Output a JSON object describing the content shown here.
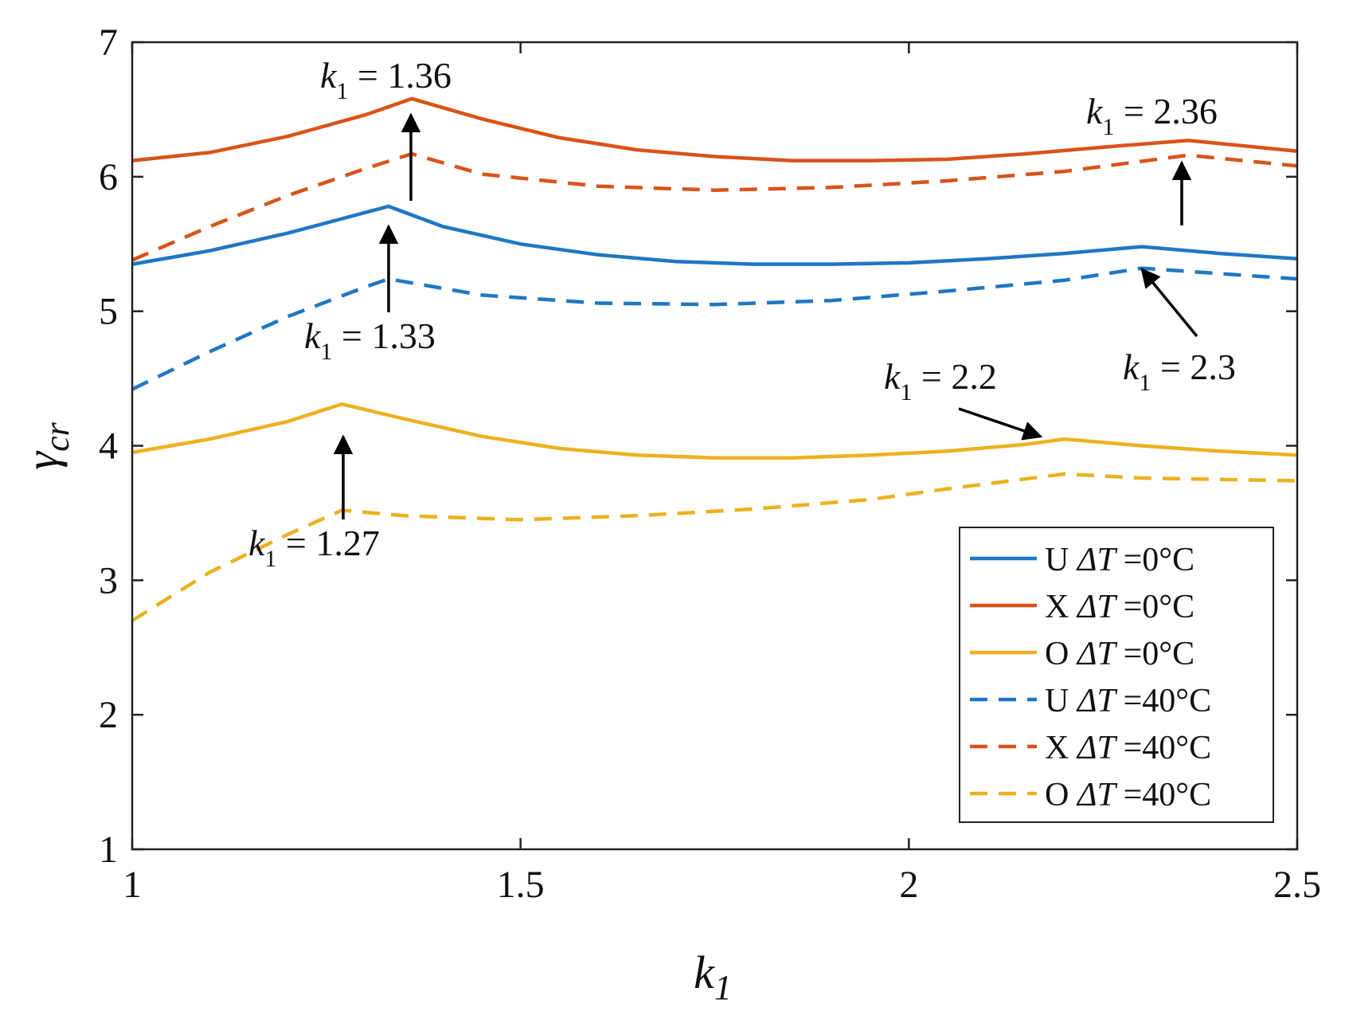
{
  "chart_data": {
    "type": "line",
    "title": "",
    "xlabel": "k_1",
    "ylabel": "γ_cr",
    "xlim": [
      1,
      2.5
    ],
    "ylim": [
      1,
      7
    ],
    "xticks": [
      1,
      1.5,
      2,
      2.5
    ],
    "yticks": [
      1,
      2,
      3,
      4,
      5,
      6,
      7
    ],
    "xtick_labels": [
      "1",
      "1.5",
      "2",
      "2.5"
    ],
    "ytick_labels": [
      "1",
      "2",
      "3",
      "4",
      "5",
      "6",
      "7"
    ],
    "grid": false,
    "legend_position": "bottom-right",
    "series": [
      {
        "name": "U ΔT =0°C",
        "label_prefix": "U",
        "delta_t": "=0°C",
        "color": "#1f77c4",
        "style": "solid",
        "x": [
          1.0,
          1.1,
          1.2,
          1.33,
          1.4,
          1.5,
          1.6,
          1.7,
          1.8,
          1.9,
          2.0,
          2.1,
          2.2,
          2.3,
          2.4,
          2.5
        ],
        "y": [
          5.35,
          5.45,
          5.58,
          5.78,
          5.63,
          5.5,
          5.42,
          5.37,
          5.35,
          5.35,
          5.36,
          5.39,
          5.43,
          5.48,
          5.43,
          5.39
        ]
      },
      {
        "name": "X ΔT =0°C",
        "label_prefix": "X",
        "delta_t": "=0°C",
        "color": "#d95319",
        "style": "solid",
        "x": [
          1.0,
          1.1,
          1.2,
          1.3,
          1.36,
          1.45,
          1.55,
          1.65,
          1.75,
          1.85,
          1.95,
          2.05,
          2.15,
          2.25,
          2.36,
          2.5
        ],
        "y": [
          6.12,
          6.18,
          6.3,
          6.46,
          6.58,
          6.43,
          6.29,
          6.2,
          6.15,
          6.12,
          6.12,
          6.13,
          6.17,
          6.22,
          6.27,
          6.19
        ]
      },
      {
        "name": "O ΔT =0°C",
        "label_prefix": "O",
        "delta_t": "=0°C",
        "color": "#edb120",
        "style": "solid",
        "x": [
          1.0,
          1.1,
          1.2,
          1.27,
          1.35,
          1.45,
          1.55,
          1.65,
          1.75,
          1.85,
          1.95,
          2.05,
          2.15,
          2.2,
          2.3,
          2.4,
          2.5
        ],
        "y": [
          3.95,
          4.05,
          4.18,
          4.31,
          4.2,
          4.07,
          3.98,
          3.93,
          3.91,
          3.91,
          3.93,
          3.96,
          4.01,
          4.05,
          4.0,
          3.96,
          3.93
        ]
      },
      {
        "name": "U ΔT =40°C",
        "label_prefix": "U",
        "delta_t": "=40°C",
        "color": "#1f77c4",
        "style": "dashed",
        "x": [
          1.0,
          1.1,
          1.2,
          1.3,
          1.33,
          1.45,
          1.6,
          1.75,
          1.9,
          2.05,
          2.2,
          2.3,
          2.4,
          2.5
        ],
        "y": [
          4.42,
          4.7,
          4.96,
          5.18,
          5.24,
          5.12,
          5.06,
          5.05,
          5.08,
          5.15,
          5.23,
          5.32,
          5.28,
          5.24
        ]
      },
      {
        "name": "X ΔT =40°C",
        "label_prefix": "X",
        "delta_t": "=40°C",
        "color": "#d95319",
        "style": "dashed",
        "x": [
          1.0,
          1.1,
          1.2,
          1.3,
          1.36,
          1.45,
          1.6,
          1.75,
          1.9,
          2.05,
          2.2,
          2.36,
          2.5
        ],
        "y": [
          5.38,
          5.63,
          5.86,
          6.06,
          6.17,
          6.02,
          5.93,
          5.9,
          5.92,
          5.97,
          6.04,
          6.16,
          6.08
        ]
      },
      {
        "name": "O ΔT =40°C",
        "label_prefix": "O",
        "delta_t": "=40°C",
        "color": "#edb120",
        "style": "dashed",
        "x": [
          1.0,
          1.1,
          1.2,
          1.27,
          1.35,
          1.5,
          1.65,
          1.8,
          1.95,
          2.05,
          2.2,
          2.3,
          2.4,
          2.5
        ],
        "y": [
          2.7,
          3.06,
          3.34,
          3.52,
          3.48,
          3.45,
          3.48,
          3.53,
          3.6,
          3.68,
          3.79,
          3.76,
          3.75,
          3.74
        ]
      }
    ],
    "annotations": [
      {
        "variable": "k",
        "subscript": "1",
        "eq": " = ",
        "value": "1.36",
        "point": [
          1.36,
          6.58
        ],
        "arrow": "up"
      },
      {
        "variable": "k",
        "subscript": "1",
        "eq": " = ",
        "value": "2.36",
        "point": [
          2.36,
          6.27
        ],
        "arrow": "up"
      },
      {
        "variable": "k",
        "subscript": "1",
        "eq": " = ",
        "value": "1.33",
        "point": [
          1.33,
          5.78
        ],
        "arrow": "up"
      },
      {
        "variable": "k",
        "subscript": "1",
        "eq": " = ",
        "value": "2.3",
        "point": [
          2.3,
          5.32
        ],
        "arrow": "diagonal"
      },
      {
        "variable": "k",
        "subscript": "1",
        "eq": " = ",
        "value": "2.2",
        "point": [
          2.2,
          4.05
        ],
        "arrow": "diagonal"
      },
      {
        "variable": "k",
        "subscript": "1",
        "eq": " = ",
        "value": "1.27",
        "point": [
          1.27,
          4.31
        ],
        "arrow": "up"
      }
    ]
  }
}
